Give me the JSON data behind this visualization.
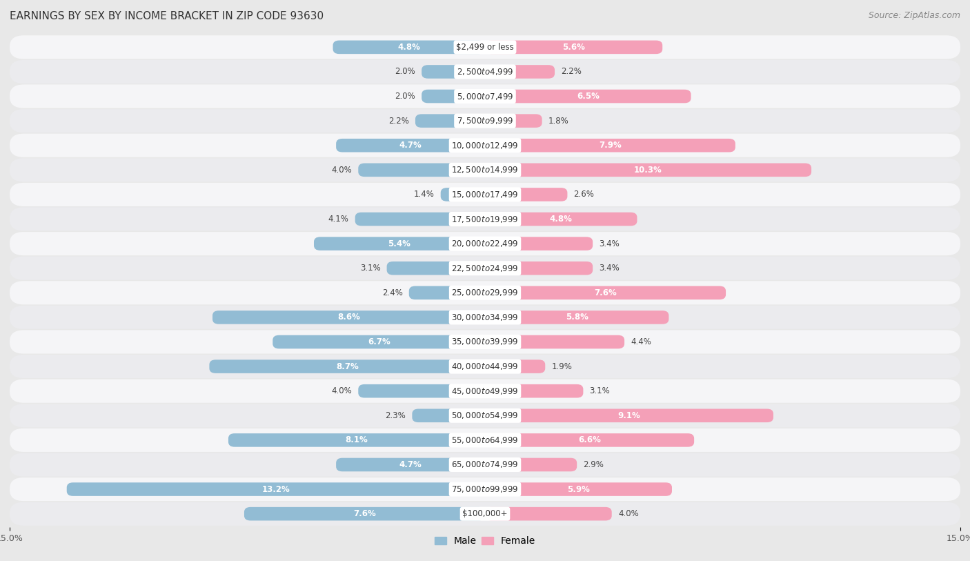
{
  "title": "EARNINGS BY SEX BY INCOME BRACKET IN ZIP CODE 93630",
  "source": "Source: ZipAtlas.com",
  "categories": [
    "$2,499 or less",
    "$2,500 to $4,999",
    "$5,000 to $7,499",
    "$7,500 to $9,999",
    "$10,000 to $12,499",
    "$12,500 to $14,999",
    "$15,000 to $17,499",
    "$17,500 to $19,999",
    "$20,000 to $22,499",
    "$22,500 to $24,999",
    "$25,000 to $29,999",
    "$30,000 to $34,999",
    "$35,000 to $39,999",
    "$40,000 to $44,999",
    "$45,000 to $49,999",
    "$50,000 to $54,999",
    "$55,000 to $64,999",
    "$65,000 to $74,999",
    "$75,000 to $99,999",
    "$100,000+"
  ],
  "male_values": [
    4.8,
    2.0,
    2.0,
    2.2,
    4.7,
    4.0,
    1.4,
    4.1,
    5.4,
    3.1,
    2.4,
    8.6,
    6.7,
    8.7,
    4.0,
    2.3,
    8.1,
    4.7,
    13.2,
    7.6
  ],
  "female_values": [
    5.6,
    2.2,
    6.5,
    1.8,
    7.9,
    10.3,
    2.6,
    4.8,
    3.4,
    3.4,
    7.6,
    5.8,
    4.4,
    1.9,
    3.1,
    9.1,
    6.6,
    2.9,
    5.9,
    4.0
  ],
  "male_color": "#92bcd4",
  "female_color": "#f4a0b8",
  "male_label": "Male",
  "female_label": "Female",
  "male_label_inside_color": "#ffffff",
  "female_label_inside_color": "#ffffff",
  "xlim": 15.0,
  "bg_color": "#e8e8e8",
  "row_bg_color": "#f5f5f7",
  "row_alt_bg_color": "#ebebee",
  "title_fontsize": 11,
  "source_fontsize": 9,
  "label_fontsize": 8.5,
  "category_fontsize": 8.5,
  "axis_tick_fontsize": 9,
  "bar_height": 0.55
}
